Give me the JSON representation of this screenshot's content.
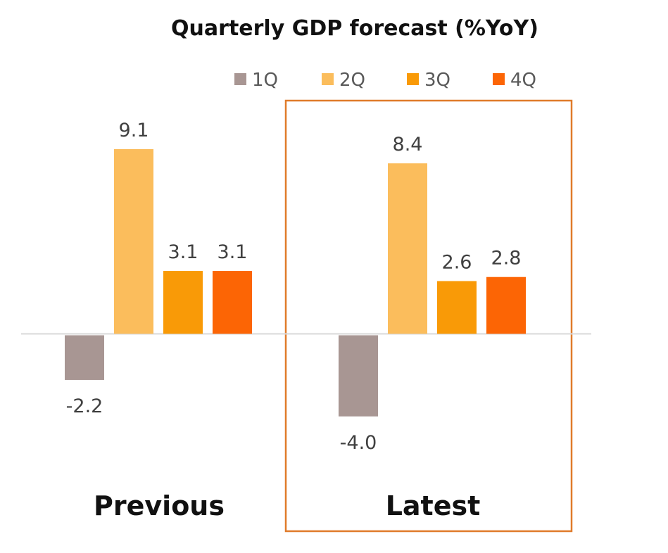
{
  "chart_data": {
    "type": "bar",
    "title": "Quarterly GDP forecast (%YoY)",
    "categories": [
      "Previous",
      "Latest"
    ],
    "highlighted_category": "Latest",
    "highlight_color": "#e07b2a",
    "axis_line_color": "#d9d9d9",
    "legend_placement": "top-right",
    "grid": false,
    "ylim": [
      -4.0,
      9.1
    ],
    "series": [
      {
        "name": "1Q",
        "color": "#a89693",
        "values": [
          -2.2,
          -4.0
        ],
        "labels": [
          "-2.2",
          "-4.0"
        ]
      },
      {
        "name": "2Q",
        "color": "#fbbd5c",
        "values": [
          9.1,
          8.4
        ],
        "labels": [
          "9.1",
          "8.4"
        ]
      },
      {
        "name": "3Q",
        "color": "#f99a07",
        "values": [
          3.1,
          2.6
        ],
        "labels": [
          "3.1",
          "2.6"
        ]
      },
      {
        "name": "4Q",
        "color": "#fc6505",
        "values": [
          3.1,
          2.8
        ],
        "labels": [
          "3.1",
          "2.8"
        ]
      }
    ]
  }
}
